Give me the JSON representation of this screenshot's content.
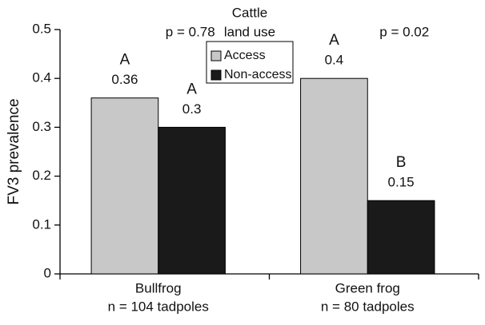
{
  "chart_data": {
    "type": "bar",
    "y_label": "FV3 prevalence",
    "categories": [
      "Bullfrog",
      "Green frog"
    ],
    "category_notes": [
      "n = 104 tadpoles",
      "n = 80 tadpoles"
    ],
    "p_values": [
      "p = 0.78",
      "p = 0.02"
    ],
    "legend_title": [
      "Cattle",
      "land use"
    ],
    "series": [
      {
        "name": "Access",
        "color": "#c8c8c8",
        "values": [
          0.36,
          0.4
        ],
        "letters": [
          "A",
          "A"
        ]
      },
      {
        "name": "Non-access",
        "color": "#1a1a1a",
        "values": [
          0.3,
          0.15
        ],
        "letters": [
          "A",
          "B"
        ]
      }
    ],
    "ylim": [
      0,
      0.5
    ],
    "yticks": [
      0,
      0.1,
      0.2,
      0.3,
      0.4,
      0.5
    ]
  }
}
